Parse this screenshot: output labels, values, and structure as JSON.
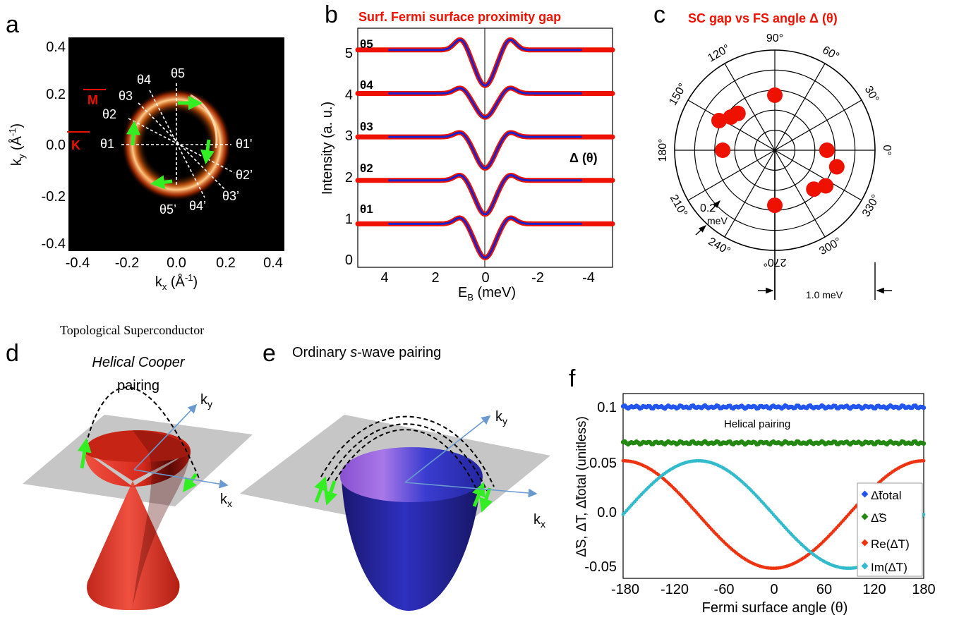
{
  "panel_letters": {
    "a": "a",
    "b": "b",
    "c": "c",
    "d": "d",
    "e": "e",
    "f": "f"
  },
  "panel_a": {
    "ticks": [
      "0.4",
      "0.2",
      "0.0",
      "-0.2",
      "-0.4"
    ],
    "x_ticks": [
      "-0.4",
      "-0.2",
      "0.0",
      "0.2",
      "0.4"
    ],
    "ylabel": "k",
    "ylabel_sub": "y",
    "ylabel_unit": " (Å",
    "ylabel_sup": "-1",
    "ylabel_end": ")",
    "xlabel": "k",
    "xlabel_sub": "x",
    "xlabel_unit": " (Å",
    "xlabel_sup": "-1",
    "xlabel_end": ")",
    "point_M": "M",
    "point_K": "K",
    "theta_labels": [
      "θ1",
      "θ2",
      "θ3",
      "θ4",
      "θ5",
      "θ1'",
      "θ2’",
      "θ3’",
      "θ4’",
      "θ5’"
    ],
    "colors": {
      "ring": "#ff5a10",
      "arrow": "#33ee22",
      "marker": "#ee1100"
    }
  },
  "panel_b": {
    "title": "Surf. Fermi surface proximity gap",
    "ylabel": "Intensity (a. u.)",
    "xlabel": "E",
    "xlabel_sub": "B",
    "xlabel_end": " (meV)",
    "x_ticks": [
      "4",
      "2",
      "0",
      "-2",
      "-4"
    ],
    "y_ticks": [
      "5",
      "4",
      "3",
      "2",
      "1",
      "0"
    ],
    "curve_labels": [
      "θ5",
      "θ4",
      "θ3",
      "θ2",
      "θ1"
    ],
    "annotation": "Δ (θ)"
  },
  "panel_c": {
    "title": "SC gap vs FS angle Δ (θ)",
    "angle_labels": [
      "0°",
      "30°",
      "60°",
      "90°",
      "120°",
      "150°",
      "180°",
      "210°",
      "240°",
      "270°",
      "300°",
      "330°"
    ],
    "radius_label_1": "0.2",
    "radius_label_2": "meV",
    "scale_label": "1.0 meV"
  },
  "panel_d": {
    "header": "Topological Superconductor",
    "title_line1": "Helical Cooper",
    "title_line2": "pairing",
    "ky": "k",
    "ky_sub": "y",
    "kx": "k",
    "kx_sub": "x"
  },
  "panel_e": {
    "title_pre": "Ordinary ",
    "title_s": "s",
    "title_post": "-wave pairing",
    "ky": "k",
    "ky_sub": "y",
    "kx": "k",
    "kx_sub": "x"
  },
  "panel_f": {
    "ylabel": "Δ̃S, Δ̃T, Δ̃total (unitless)",
    "xlabel": "Fermi surface angle (θ)",
    "annotation": "Helical pairing",
    "x_ticks": [
      "-180",
      "-120",
      "-60",
      "0",
      "60",
      "120",
      "180"
    ],
    "y_ticks": [
      "0.1",
      "0.05",
      "0.0",
      "-0.05"
    ],
    "legend": [
      "Δ̃total",
      "Δ̃S",
      "Re(Δ̃T)",
      "Im(Δ̃T)"
    ]
  },
  "chart_data": [
    {
      "panel": "b",
      "type": "line",
      "title": "Surf. Fermi surface proximity gap",
      "xlabel": "EB (meV)",
      "ylabel": "Intensity (a. u.)",
      "xlim": [
        5,
        -5
      ],
      "ylim": [
        0,
        5.5
      ],
      "series": [
        {
          "name": "θ1",
          "offset": 1,
          "gap": 0.95,
          "dip": 0.78,
          "peak": 0.16
        },
        {
          "name": "θ2",
          "offset": 2,
          "gap": 0.95,
          "dip": 0.78,
          "peak": 0.14
        },
        {
          "name": "θ3",
          "offset": 3,
          "gap": 0.95,
          "dip": 0.72,
          "peak": 0.12
        },
        {
          "name": "θ4",
          "offset": 4,
          "gap": 0.95,
          "dip": 0.55,
          "peak": 0.14
        },
        {
          "name": "θ5",
          "offset": 5,
          "gap": 0.95,
          "dip": 0.82,
          "peak": 0.26
        }
      ],
      "colors": {
        "data": "#ee1100",
        "fit": "#1a22cc"
      }
    },
    {
      "panel": "c",
      "type": "scatter",
      "title": "SC gap vs FS angle Δ (θ)",
      "coordinate": "polar",
      "angles_deg": [
        90,
        135,
        143,
        152,
        180,
        0,
        315,
        325,
        345,
        270
      ],
      "radius_meV": [
        0.55,
        0.52,
        0.55,
        0.63,
        0.52,
        0.52,
        0.55,
        0.62,
        0.64,
        0.55
      ],
      "rmax_meV": 1.0,
      "rings": 5,
      "marker_color": "#ee1100"
    },
    {
      "panel": "f",
      "type": "scatter",
      "xlabel": "Fermi surface angle (θ)",
      "ylabel": "Δ̃S, Δ̃T, Δ̃total (unitless)",
      "xlim": [
        -180,
        180
      ],
      "ylim": [
        -0.057,
        0.108
      ],
      "series": [
        {
          "name": "Δ̃total",
          "color": "#2255ee",
          "form": "constant",
          "value": 0.096
        },
        {
          "name": "Δ̃S",
          "color": "#228811",
          "form": "constant",
          "value": 0.064
        },
        {
          "name": "Re(Δ̃T)",
          "color": "#ee3311",
          "form": "cos",
          "amplitude": 0.048
        },
        {
          "name": "Im(Δ̃T)",
          "color": "#33bbcc",
          "form": "neg_sin",
          "amplitude": 0.048
        }
      ],
      "points_per_series": 181
    }
  ]
}
